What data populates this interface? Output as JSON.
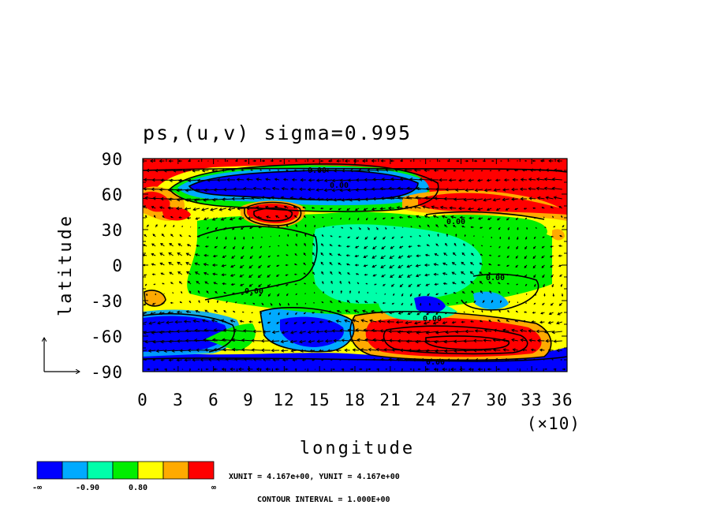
{
  "chart_data": {
    "type": "heatmap",
    "title": "ps,(u,v) sigma=0.995",
    "xlabel": "longitude",
    "ylabel": "latitude",
    "x_scale_note": "(×10)",
    "xlim": [
      0,
      36
    ],
    "ylim": [
      -90,
      90
    ],
    "xticks": [
      "0",
      "3",
      "6",
      "9",
      "12",
      "15",
      "18",
      "21",
      "24",
      "27",
      "30",
      "33",
      "36"
    ],
    "yticks": [
      "90",
      "60",
      "30",
      "0",
      "-30",
      "-60",
      "-90"
    ],
    "colorbar": {
      "colors": [
        "#0000ff",
        "#00aaff",
        "#00ffaa",
        "#00ee00",
        "#ffff00",
        "#ffaa00",
        "#ff0000"
      ],
      "labels": [
        "-∞",
        "-0.90",
        "0.80",
        "∞"
      ]
    },
    "contour_labels": [
      "0.00",
      "0.00",
      "0.00",
      "0.00",
      "0.00",
      "0.00",
      "0.00"
    ],
    "unit_text": "XUNIT = 4.167e+00, YUNIT = 4.167e+00",
    "contour_interval_text": "CONTOUR INTERVAL = 1.000E+00",
    "grid": false
  }
}
